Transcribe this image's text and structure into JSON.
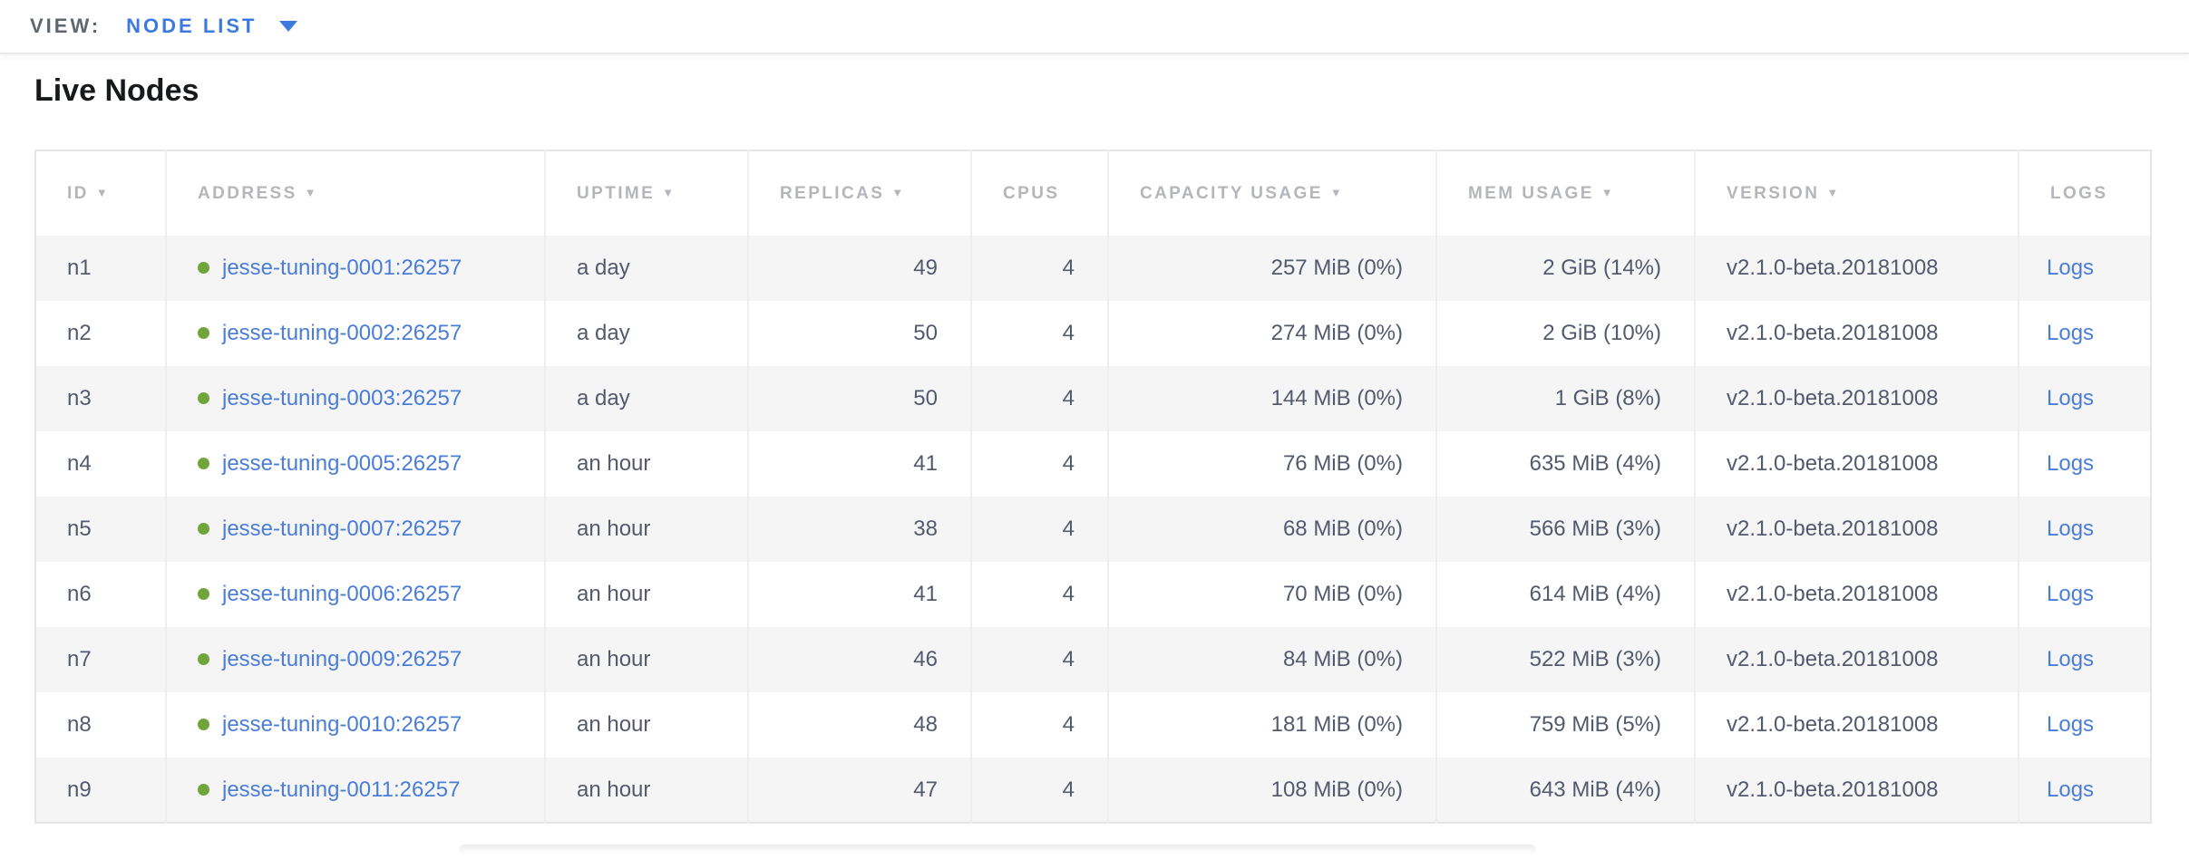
{
  "view_bar": {
    "label": "VIEW:",
    "selected": "NODE LIST",
    "dropdown_icon": "caret-down-icon"
  },
  "page": {
    "title": "Live Nodes"
  },
  "table": {
    "sort_icon": "▼",
    "columns": [
      {
        "key": "id",
        "label": "ID",
        "sortable": true
      },
      {
        "key": "address",
        "label": "ADDRESS",
        "sortable": true
      },
      {
        "key": "uptime",
        "label": "UPTIME",
        "sortable": true
      },
      {
        "key": "replicas",
        "label": "REPLICAS",
        "sortable": true
      },
      {
        "key": "cpus",
        "label": "CPUS",
        "sortable": false
      },
      {
        "key": "capacity",
        "label": "CAPACITY USAGE",
        "sortable": true
      },
      {
        "key": "mem",
        "label": "MEM USAGE",
        "sortable": true
      },
      {
        "key": "version",
        "label": "VERSION",
        "sortable": true
      },
      {
        "key": "logs",
        "label": "LOGS",
        "sortable": false
      }
    ],
    "rows": [
      {
        "id": "n1",
        "status": "live",
        "address": "jesse-tuning-0001:26257",
        "uptime": "a day",
        "replicas": "49",
        "cpus": "4",
        "capacity": "257 MiB (0%)",
        "mem": "2 GiB (14%)",
        "version": "v2.1.0-beta.20181008",
        "logs": "Logs"
      },
      {
        "id": "n2",
        "status": "live",
        "address": "jesse-tuning-0002:26257",
        "uptime": "a day",
        "replicas": "50",
        "cpus": "4",
        "capacity": "274 MiB (0%)",
        "mem": "2 GiB (10%)",
        "version": "v2.1.0-beta.20181008",
        "logs": "Logs"
      },
      {
        "id": "n3",
        "status": "live",
        "address": "jesse-tuning-0003:26257",
        "uptime": "a day",
        "replicas": "50",
        "cpus": "4",
        "capacity": "144 MiB (0%)",
        "mem": "1 GiB (8%)",
        "version": "v2.1.0-beta.20181008",
        "logs": "Logs"
      },
      {
        "id": "n4",
        "status": "live",
        "address": "jesse-tuning-0005:26257",
        "uptime": "an hour",
        "replicas": "41",
        "cpus": "4",
        "capacity": "76 MiB (0%)",
        "mem": "635 MiB (4%)",
        "version": "v2.1.0-beta.20181008",
        "logs": "Logs"
      },
      {
        "id": "n5",
        "status": "live",
        "address": "jesse-tuning-0007:26257",
        "uptime": "an hour",
        "replicas": "38",
        "cpus": "4",
        "capacity": "68 MiB (0%)",
        "mem": "566 MiB (3%)",
        "version": "v2.1.0-beta.20181008",
        "logs": "Logs"
      },
      {
        "id": "n6",
        "status": "live",
        "address": "jesse-tuning-0006:26257",
        "uptime": "an hour",
        "replicas": "41",
        "cpus": "4",
        "capacity": "70 MiB (0%)",
        "mem": "614 MiB (4%)",
        "version": "v2.1.0-beta.20181008",
        "logs": "Logs"
      },
      {
        "id": "n7",
        "status": "live",
        "address": "jesse-tuning-0009:26257",
        "uptime": "an hour",
        "replicas": "46",
        "cpus": "4",
        "capacity": "84 MiB (0%)",
        "mem": "522 MiB (3%)",
        "version": "v2.1.0-beta.20181008",
        "logs": "Logs"
      },
      {
        "id": "n8",
        "status": "live",
        "address": "jesse-tuning-0010:26257",
        "uptime": "an hour",
        "replicas": "48",
        "cpus": "4",
        "capacity": "181 MiB (0%)",
        "mem": "759 MiB (5%)",
        "version": "v2.1.0-beta.20181008",
        "logs": "Logs"
      },
      {
        "id": "n9",
        "status": "live",
        "address": "jesse-tuning-0011:26257",
        "uptime": "an hour",
        "replicas": "47",
        "cpus": "4",
        "capacity": "108 MiB (0%)",
        "mem": "643 MiB (4%)",
        "version": "v2.1.0-beta.20181008",
        "logs": "Logs"
      }
    ]
  },
  "colors": {
    "link": "#4a7dd8",
    "node_live_dot": "#6fa53b",
    "accent_blue": "#3d7ae0",
    "header_text": "#b4b6bb",
    "body_text": "#535a6e",
    "row_alt_bg": "#f5f5f6"
  }
}
